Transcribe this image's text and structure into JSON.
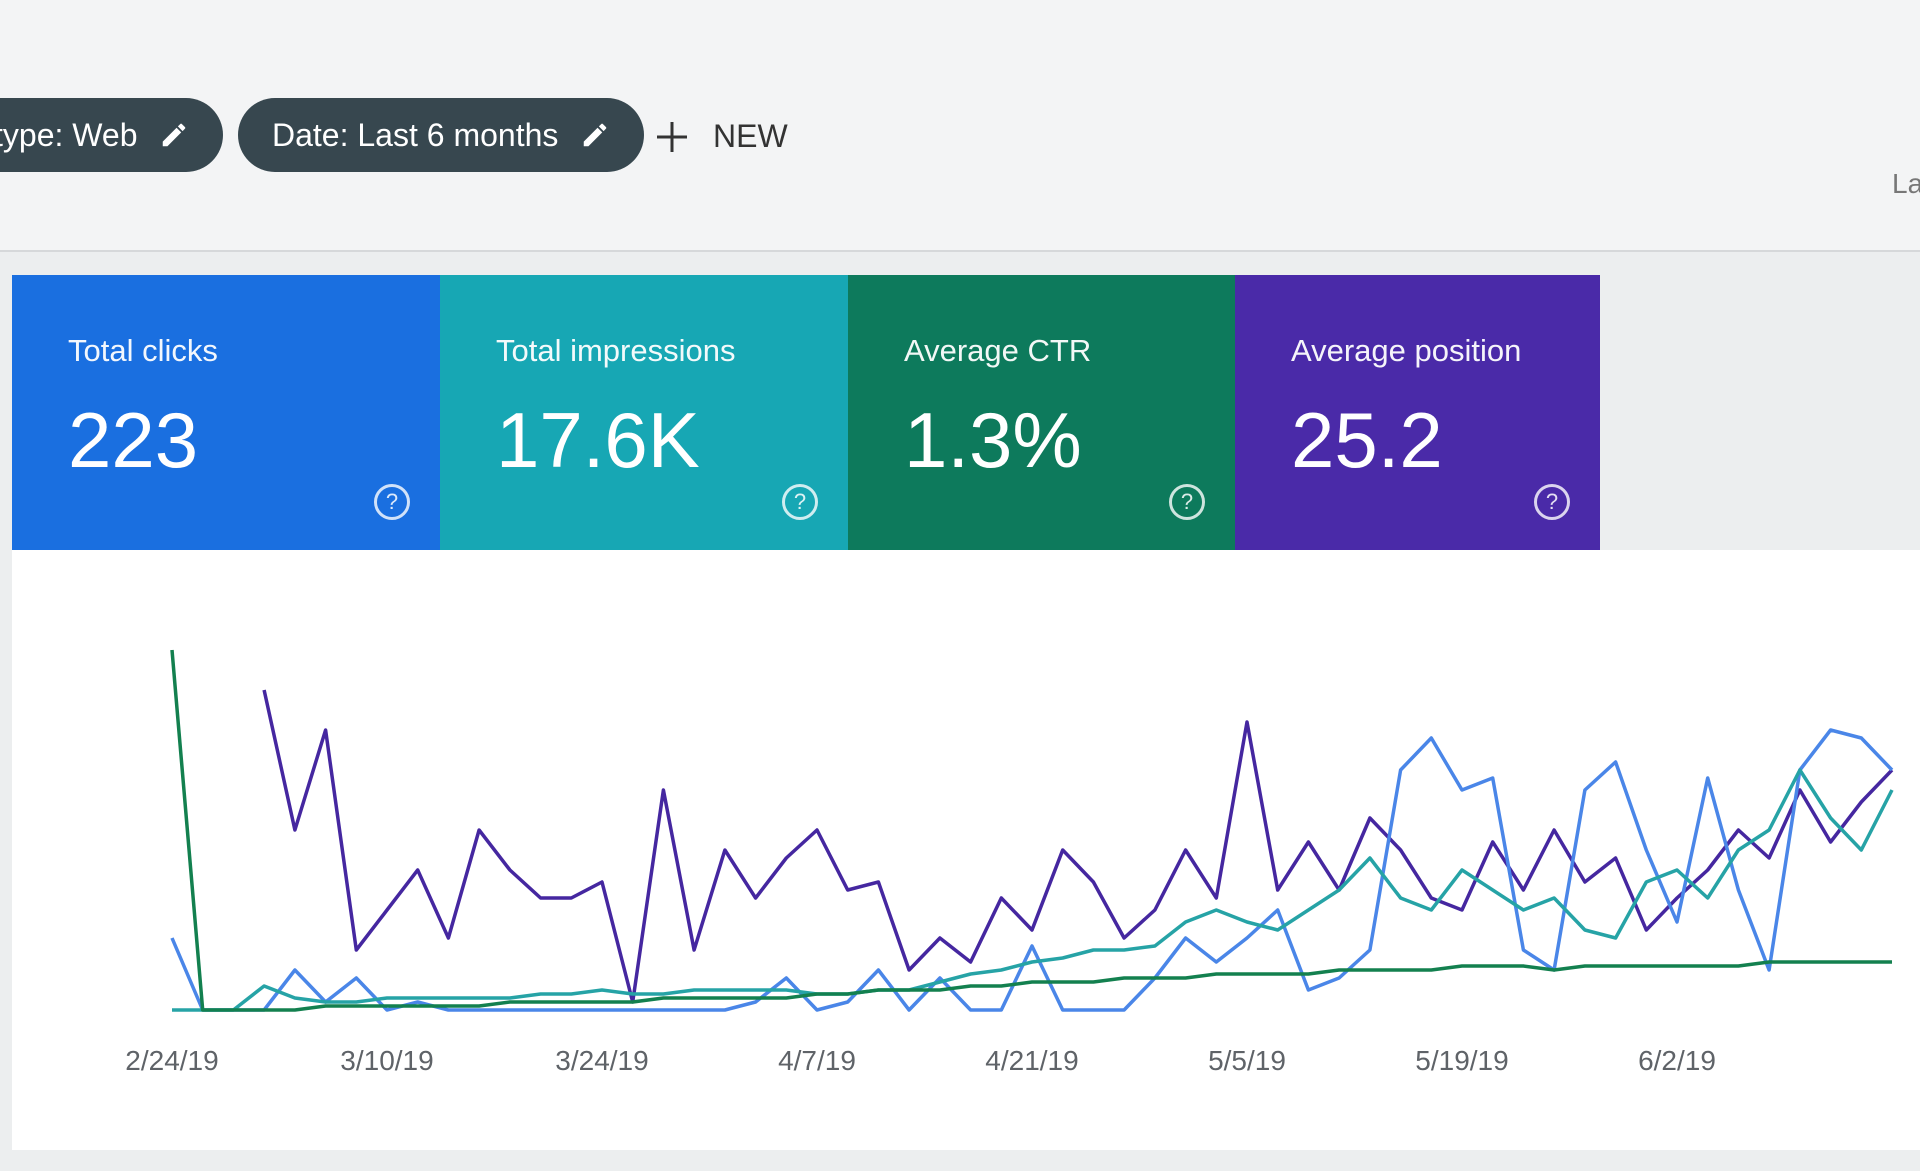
{
  "filters": {
    "chips": [
      "type: Web",
      "Date: Last 6 months"
    ],
    "new_button": "NEW",
    "right_label": "La"
  },
  "cards": [
    {
      "title": "Total clicks",
      "value": "223",
      "color": "#1a6fe0"
    },
    {
      "title": "Total impressions",
      "value": "17.6K",
      "color": "#17a7b4"
    },
    {
      "title": "Average CTR",
      "value": "1.3%",
      "color": "#0d7a5c"
    },
    {
      "title": "Average position",
      "value": "25.2",
      "color": "#4a2aa8"
    }
  ],
  "chart_data": {
    "type": "line",
    "categories": [
      "2/24/19",
      null,
      null,
      null,
      null,
      null,
      null,
      "3/10/19",
      null,
      null,
      null,
      null,
      null,
      null,
      "3/24/19",
      null,
      null,
      null,
      null,
      null,
      null,
      "4/7/19",
      null,
      null,
      null,
      null,
      null,
      null,
      "4/21/19",
      null,
      null,
      null,
      null,
      null,
      null,
      "5/5/19",
      null,
      null,
      null,
      null,
      null,
      null,
      "5/19/19",
      null,
      null,
      null,
      null,
      null,
      null,
      "6/2/19",
      null,
      null,
      null,
      null,
      null,
      null,
      null
    ],
    "ylim": [
      0,
      100
    ],
    "series": [
      {
        "color": "#4527a0",
        "values": [
          null,
          null,
          null,
          80,
          45,
          70,
          15,
          25,
          35,
          18,
          45,
          35,
          28,
          28,
          32,
          2,
          55,
          15,
          40,
          28,
          38,
          45,
          30,
          32,
          10,
          18,
          12,
          28,
          20,
          40,
          32,
          18,
          25,
          40,
          28,
          72,
          30,
          42,
          30,
          48,
          40,
          28,
          25,
          42,
          30,
          45,
          32,
          38,
          20,
          28,
          35,
          45,
          38,
          55,
          42,
          52,
          60
        ]
      },
      {
        "color": "#4a86e8",
        "values": [
          18,
          0,
          0,
          0,
          10,
          2,
          8,
          0,
          2,
          0,
          0,
          0,
          0,
          0,
          0,
          0,
          0,
          0,
          0,
          2,
          8,
          0,
          2,
          10,
          0,
          8,
          0,
          0,
          16,
          0,
          0,
          0,
          8,
          18,
          12,
          18,
          25,
          5,
          8,
          15,
          60,
          68,
          55,
          58,
          15,
          10,
          55,
          62,
          40,
          22,
          58,
          30,
          10,
          60,
          70,
          68,
          60
        ]
      },
      {
        "color": "#26a3a6",
        "values": [
          0,
          0,
          0,
          6,
          3,
          2,
          2,
          3,
          3,
          3,
          3,
          3,
          4,
          4,
          5,
          4,
          4,
          5,
          5,
          5,
          5,
          4,
          4,
          5,
          5,
          7,
          9,
          10,
          12,
          13,
          15,
          15,
          16,
          22,
          25,
          22,
          20,
          25,
          30,
          38,
          28,
          25,
          35,
          30,
          25,
          28,
          20,
          18,
          32,
          35,
          28,
          40,
          45,
          60,
          48,
          40,
          55
        ]
      },
      {
        "color": "#13804f",
        "values": [
          90,
          0,
          0,
          0,
          0,
          1,
          1,
          1,
          1,
          1,
          1,
          2,
          2,
          2,
          2,
          2,
          3,
          3,
          3,
          3,
          3,
          4,
          4,
          5,
          5,
          5,
          6,
          6,
          7,
          7,
          7,
          8,
          8,
          8,
          9,
          9,
          9,
          9,
          10,
          10,
          10,
          10,
          11,
          11,
          11,
          10,
          11,
          11,
          11,
          11,
          11,
          11,
          12,
          12,
          12,
          12,
          12
        ]
      }
    ]
  }
}
